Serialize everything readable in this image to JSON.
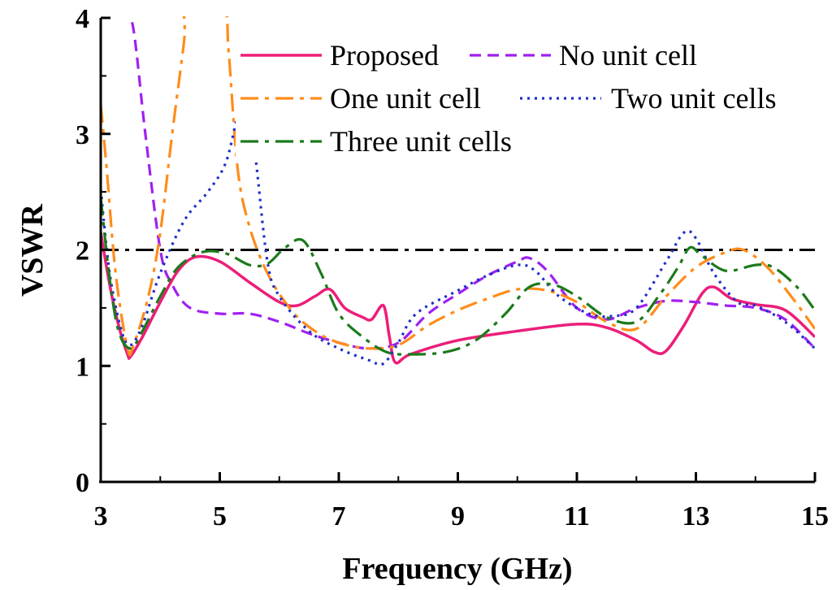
{
  "chart_data": {
    "type": "line",
    "title": "",
    "xlabel": "Frequency (GHz)",
    "ylabel": "VSWR",
    "xlim": [
      3,
      15
    ],
    "ylim": [
      0,
      4
    ],
    "xticks": [
      "3",
      "5",
      "7",
      "9",
      "11",
      "13",
      "15"
    ],
    "yticks": [
      "0",
      "1",
      "2",
      "3",
      "4"
    ],
    "reference_line": {
      "y": 2,
      "color": "#000000",
      "style": "dashdot"
    },
    "series": [
      {
        "name": "Proposed",
        "color": "#ec1e79",
        "style": "solid",
        "points": [
          [
            3,
            2.15
          ],
          [
            3.15,
            1.7
          ],
          [
            3.3,
            1.35
          ],
          [
            3.45,
            1.1
          ],
          [
            3.5,
            1.08
          ],
          [
            3.7,
            1.25
          ],
          [
            4.0,
            1.55
          ],
          [
            4.3,
            1.82
          ],
          [
            4.6,
            1.94
          ],
          [
            5.0,
            1.9
          ],
          [
            5.5,
            1.72
          ],
          [
            6.0,
            1.55
          ],
          [
            6.3,
            1.52
          ],
          [
            6.6,
            1.6
          ],
          [
            6.85,
            1.66
          ],
          [
            7.1,
            1.5
          ],
          [
            7.4,
            1.42
          ],
          [
            7.55,
            1.4
          ],
          [
            7.75,
            1.52
          ],
          [
            7.85,
            1.25
          ],
          [
            7.95,
            1.03
          ],
          [
            8.2,
            1.1
          ],
          [
            9.0,
            1.22
          ],
          [
            10.0,
            1.3
          ],
          [
            11.0,
            1.36
          ],
          [
            11.5,
            1.33
          ],
          [
            12.0,
            1.22
          ],
          [
            12.3,
            1.12
          ],
          [
            12.5,
            1.13
          ],
          [
            12.8,
            1.35
          ],
          [
            13.1,
            1.62
          ],
          [
            13.3,
            1.68
          ],
          [
            13.6,
            1.58
          ],
          [
            14.0,
            1.53
          ],
          [
            14.5,
            1.48
          ],
          [
            15.0,
            1.25
          ]
        ]
      },
      {
        "name": "No unit cell",
        "color": "#a020f0",
        "style": "dash",
        "points": [
          [
            3.4,
            4.1
          ],
          [
            3.55,
            3.9
          ],
          [
            3.75,
            3.0
          ],
          [
            4.0,
            2.0
          ],
          [
            4.2,
            1.7
          ],
          [
            4.5,
            1.5
          ],
          [
            5.0,
            1.45
          ],
          [
            5.5,
            1.45
          ],
          [
            6.0,
            1.38
          ],
          [
            6.5,
            1.28
          ],
          [
            7.0,
            1.2
          ],
          [
            7.5,
            1.15
          ],
          [
            8.0,
            1.2
          ],
          [
            8.5,
            1.45
          ],
          [
            9.0,
            1.62
          ],
          [
            9.5,
            1.78
          ],
          [
            10.0,
            1.9
          ],
          [
            10.2,
            1.93
          ],
          [
            10.5,
            1.82
          ],
          [
            11.0,
            1.5
          ],
          [
            11.5,
            1.4
          ],
          [
            12.0,
            1.5
          ],
          [
            12.5,
            1.56
          ],
          [
            13.0,
            1.55
          ],
          [
            13.5,
            1.52
          ],
          [
            14.0,
            1.5
          ],
          [
            14.5,
            1.4
          ],
          [
            15.0,
            1.15
          ]
        ]
      },
      {
        "name": "One unit cell",
        "color": "#ff8c1a",
        "style": "dashdot",
        "points": [
          [
            3.0,
            3.25
          ],
          [
            3.1,
            2.7
          ],
          [
            3.25,
            1.8
          ],
          [
            3.45,
            1.15
          ],
          [
            3.55,
            1.18
          ],
          [
            3.8,
            1.6
          ],
          [
            4.0,
            2.15
          ],
          [
            4.2,
            3.0
          ],
          [
            4.4,
            3.8
          ],
          [
            4.45,
            4.1
          ],
          [
            5.05,
            4.1
          ],
          [
            5.15,
            3.7
          ],
          [
            5.3,
            2.7
          ],
          [
            5.5,
            2.2
          ],
          [
            5.8,
            1.8
          ],
          [
            6.2,
            1.48
          ],
          [
            6.6,
            1.3
          ],
          [
            7.0,
            1.2
          ],
          [
            7.5,
            1.15
          ],
          [
            8.0,
            1.18
          ],
          [
            8.5,
            1.35
          ],
          [
            9.0,
            1.48
          ],
          [
            9.5,
            1.58
          ],
          [
            10.0,
            1.66
          ],
          [
            10.5,
            1.65
          ],
          [
            11.0,
            1.55
          ],
          [
            11.5,
            1.38
          ],
          [
            12.0,
            1.32
          ],
          [
            12.5,
            1.6
          ],
          [
            13.0,
            1.85
          ],
          [
            13.5,
            1.98
          ],
          [
            13.8,
            2.0
          ],
          [
            14.2,
            1.85
          ],
          [
            14.6,
            1.6
          ],
          [
            15.0,
            1.32
          ]
        ]
      },
      {
        "name": "Two unit cells",
        "color": "#1f2fc7",
        "style": "dot",
        "points": [
          [
            3.0,
            2.52
          ],
          [
            3.15,
            1.8
          ],
          [
            3.35,
            1.3
          ],
          [
            3.5,
            1.18
          ],
          [
            3.7,
            1.35
          ],
          [
            4.0,
            1.8
          ],
          [
            4.4,
            2.25
          ],
          [
            4.8,
            2.5
          ],
          [
            5.1,
            2.75
          ],
          [
            5.3,
            3.15
          ],
          [
            5.45,
            3.3
          ],
          [
            5.6,
            2.8
          ],
          [
            5.8,
            1.9
          ],
          [
            6.0,
            1.6
          ],
          [
            6.5,
            1.3
          ],
          [
            7.0,
            1.15
          ],
          [
            7.5,
            1.05
          ],
          [
            7.75,
            1.02
          ],
          [
            8.0,
            1.2
          ],
          [
            8.3,
            1.45
          ],
          [
            9.0,
            1.65
          ],
          [
            9.5,
            1.78
          ],
          [
            10.0,
            1.87
          ],
          [
            10.3,
            1.82
          ],
          [
            10.7,
            1.6
          ],
          [
            11.2,
            1.45
          ],
          [
            11.6,
            1.43
          ],
          [
            12.0,
            1.5
          ],
          [
            12.5,
            1.9
          ],
          [
            12.8,
            2.15
          ],
          [
            13.0,
            2.1
          ],
          [
            13.3,
            1.8
          ],
          [
            13.7,
            1.55
          ],
          [
            14.0,
            1.52
          ],
          [
            14.5,
            1.38
          ],
          [
            15.0,
            1.15
          ]
        ]
      },
      {
        "name": "Three unit cells",
        "color": "#1b7a1b",
        "style": "dashdot",
        "points": [
          [
            3.0,
            2.45
          ],
          [
            3.15,
            1.75
          ],
          [
            3.3,
            1.3
          ],
          [
            3.5,
            1.15
          ],
          [
            3.7,
            1.3
          ],
          [
            4.0,
            1.6
          ],
          [
            4.3,
            1.85
          ],
          [
            4.7,
            1.98
          ],
          [
            5.1,
            1.97
          ],
          [
            5.5,
            1.87
          ],
          [
            5.8,
            1.88
          ],
          [
            6.1,
            2.02
          ],
          [
            6.4,
            2.08
          ],
          [
            6.7,
            1.8
          ],
          [
            7.0,
            1.45
          ],
          [
            7.4,
            1.25
          ],
          [
            7.8,
            1.12
          ],
          [
            8.2,
            1.1
          ],
          [
            8.8,
            1.12
          ],
          [
            9.3,
            1.22
          ],
          [
            9.8,
            1.45
          ],
          [
            10.2,
            1.68
          ],
          [
            10.6,
            1.7
          ],
          [
            11.0,
            1.6
          ],
          [
            11.5,
            1.42
          ],
          [
            12.0,
            1.38
          ],
          [
            12.4,
            1.62
          ],
          [
            12.7,
            1.85
          ],
          [
            12.9,
            2.02
          ],
          [
            13.1,
            1.95
          ],
          [
            13.5,
            1.82
          ],
          [
            14.0,
            1.87
          ],
          [
            14.3,
            1.85
          ],
          [
            14.7,
            1.68
          ],
          [
            15.0,
            1.48
          ]
        ]
      }
    ],
    "legend": {
      "placement": "top-right",
      "entries": [
        "Proposed",
        "No unit cell",
        "One unit cell",
        "Two unit cells",
        "Three unit cells"
      ]
    }
  }
}
